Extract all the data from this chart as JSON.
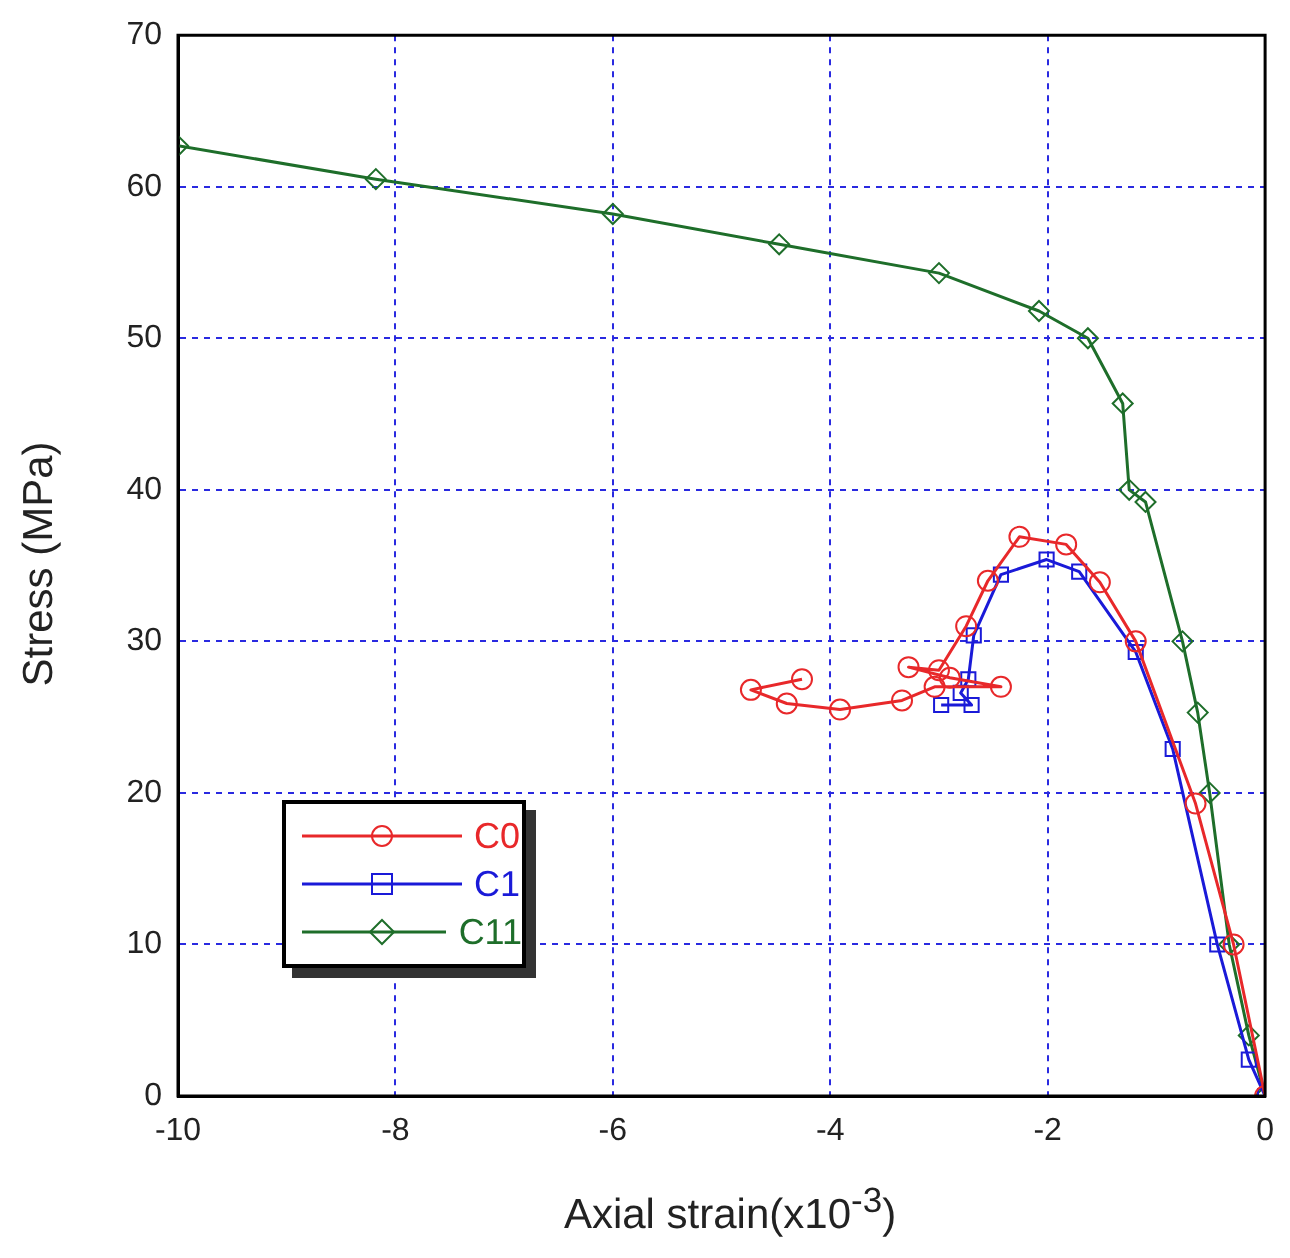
{
  "chart_data": {
    "type": "line",
    "xlabel": "Axial strain(x10$^{-3}$)",
    "ylabel": "Stress (MPa)",
    "xlim": [
      -10,
      0
    ],
    "xticks": [
      -10,
      -8,
      -6,
      -4,
      -2,
      0
    ],
    "ylim": [
      0,
      70
    ],
    "yticks": [
      0,
      10,
      20,
      30,
      40,
      50,
      60,
      70
    ],
    "grid": true,
    "legend": "bottom left",
    "line_style": "solid",
    "series": [
      {
        "name": "C0",
        "color": "#e8282a",
        "marker": "circle",
        "x": [
          -4.26,
          -4.73,
          -4.4,
          -3.91,
          -3.34,
          -3.04,
          -2.43,
          -2.9,
          -3.28,
          -3.0,
          -2.75,
          -2.55,
          -2.26,
          -1.83,
          -1.52,
          -1.19,
          -0.64,
          -0.29,
          0
        ],
        "values": [
          27.5,
          26.8,
          25.9,
          25.5,
          26.1,
          27.0,
          27.0,
          27.6,
          28.3,
          28.1,
          31,
          34,
          36.9,
          36.4,
          33.9,
          30,
          19.3,
          10,
          0
        ]
      },
      {
        "name": "C1",
        "color": "#1a1ad8",
        "marker": "square",
        "x": [
          -2.98,
          -2.7,
          -2.8,
          -2.73,
          -2.68,
          -2.43,
          -2.01,
          -1.71,
          -1.19,
          -0.85,
          -0.44,
          -0.15,
          0
        ],
        "values": [
          25.8,
          25.8,
          26.6,
          27.5,
          30.4,
          34.4,
          35.4,
          34.6,
          29.3,
          22.9,
          10,
          2.4,
          0
        ]
      },
      {
        "name": "C11",
        "color": "#1e6e2a",
        "marker": "diamond",
        "x": [
          -10,
          -8.18,
          -6,
          -4.47,
          -3,
          -2.08,
          -1.63,
          -1.31,
          -1.25,
          -1.1,
          -0.76,
          -0.62,
          -0.51,
          -0.33,
          -0.15,
          0
        ],
        "values": [
          62.7,
          60.5,
          58.2,
          56.2,
          54.3,
          51.8,
          50,
          45.7,
          40,
          39.2,
          30,
          25.3,
          20,
          10,
          4,
          0
        ]
      }
    ]
  }
}
